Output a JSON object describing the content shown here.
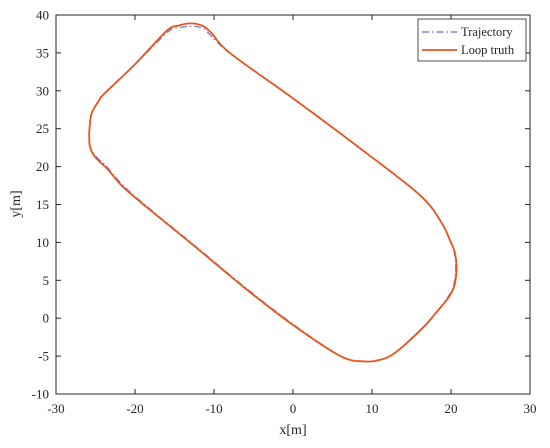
{
  "chart_data": {
    "type": "line",
    "title": "",
    "xlabel": "x[m]",
    "ylabel": "y[m]",
    "xlim": [
      -30,
      30
    ],
    "ylim": [
      -10,
      40
    ],
    "xticks": [
      "-30",
      "-20",
      "-10",
      "0",
      "10",
      "20",
      "30"
    ],
    "yticks": [
      "-10",
      "-5",
      "0",
      "5",
      "10",
      "15",
      "20",
      "25",
      "30",
      "35",
      "40"
    ],
    "grid": false,
    "legend_position": "top-right",
    "series": [
      {
        "name": "Trajectory",
        "style": "dash-dot",
        "color": "#8080C8",
        "x": [
          -25.8,
          -25.5,
          -24.5,
          -24.0,
          -20.0,
          -15.8,
          -14.5,
          -13.0,
          -11.5,
          -10.5,
          -8.0,
          0.0,
          8.0,
          16.0,
          18.7,
          19.8,
          20.4,
          20.6,
          20.3,
          19.5,
          18.0,
          16.5,
          13.0,
          11.0,
          9.0,
          6.0,
          0.0,
          -6.0,
          -12.0,
          -18.0,
          -21.5,
          -23.5,
          -25.0,
          -25.7,
          -25.8
        ],
        "y": [
          24.5,
          27.0,
          28.8,
          29.5,
          33.5,
          37.8,
          38.3,
          38.5,
          38.3,
          37.4,
          35.0,
          29.0,
          22.8,
          16.3,
          12.8,
          10.4,
          8.8,
          6.5,
          4.2,
          2.6,
          0.6,
          -1.2,
          -4.5,
          -5.5,
          -5.7,
          -5.0,
          -0.8,
          4.0,
          9.2,
          14.3,
          17.5,
          19.9,
          21.4,
          22.7,
          24.5
        ]
      },
      {
        "name": "Loop truth",
        "style": "solid",
        "color": "#E8541E",
        "x": [
          -25.8,
          -25.5,
          -24.5,
          -24.0,
          -20.0,
          -16.0,
          -14.5,
          -13.0,
          -11.5,
          -10.3,
          -8.0,
          0.0,
          8.0,
          16.0,
          18.8,
          19.9,
          20.5,
          20.7,
          20.4,
          19.6,
          18.0,
          16.5,
          13.0,
          11.0,
          9.0,
          6.0,
          0.0,
          -6.0,
          -12.0,
          -18.0,
          -21.5,
          -23.5,
          -25.0,
          -25.7,
          -25.8
        ],
        "y": [
          24.5,
          27.0,
          28.8,
          29.5,
          33.5,
          37.9,
          38.6,
          38.9,
          38.6,
          37.6,
          35.0,
          29.0,
          22.8,
          16.3,
          12.6,
          10.2,
          8.6,
          6.5,
          4.2,
          2.6,
          0.6,
          -1.2,
          -4.5,
          -5.5,
          -5.7,
          -5.0,
          -0.9,
          3.9,
          9.1,
          14.2,
          17.3,
          19.7,
          21.2,
          22.6,
          24.5
        ]
      }
    ]
  }
}
